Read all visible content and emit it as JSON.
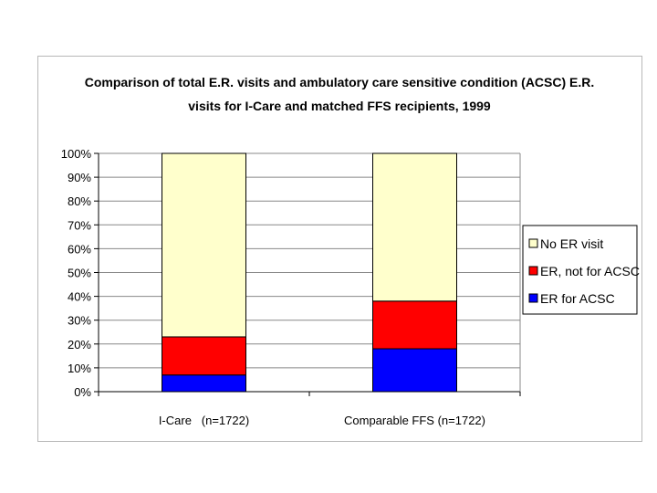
{
  "chart_data": {
    "type": "bar",
    "stacked": true,
    "title": "Comparison of total E.R. visits and ambulatory care sensitive condition (ACSC) E.R. visits for I-Care and matched FFS recipients, 1999",
    "title_lines": [
      "Comparison of total E.R. visits and ambulatory care sensitive condition (ACSC) E.R.",
      "visits for I-Care and matched FFS recipients, 1999"
    ],
    "categories": [
      "I-Care   (n=1722)",
      "Comparable FFS (n=1722)"
    ],
    "series": [
      {
        "name": "ER for ACSC",
        "values": [
          7,
          18
        ],
        "color": "#0000ff"
      },
      {
        "name": "ER, not for ACSC",
        "values": [
          16,
          20
        ],
        "color": "#ff0000"
      },
      {
        "name": "No ER visit",
        "values": [
          77,
          62
        ],
        "color": "#ffffcc"
      }
    ],
    "legend_order": [
      "No ER visit",
      "ER, not for ACSC",
      "ER for ACSC"
    ],
    "ylim": [
      0,
      100
    ],
    "yticks": [
      "0%",
      "10%",
      "20%",
      "30%",
      "40%",
      "50%",
      "60%",
      "70%",
      "80%",
      "90%",
      "100%"
    ],
    "xlabel": "",
    "ylabel": "",
    "grid": true,
    "legend_position": "right"
  }
}
